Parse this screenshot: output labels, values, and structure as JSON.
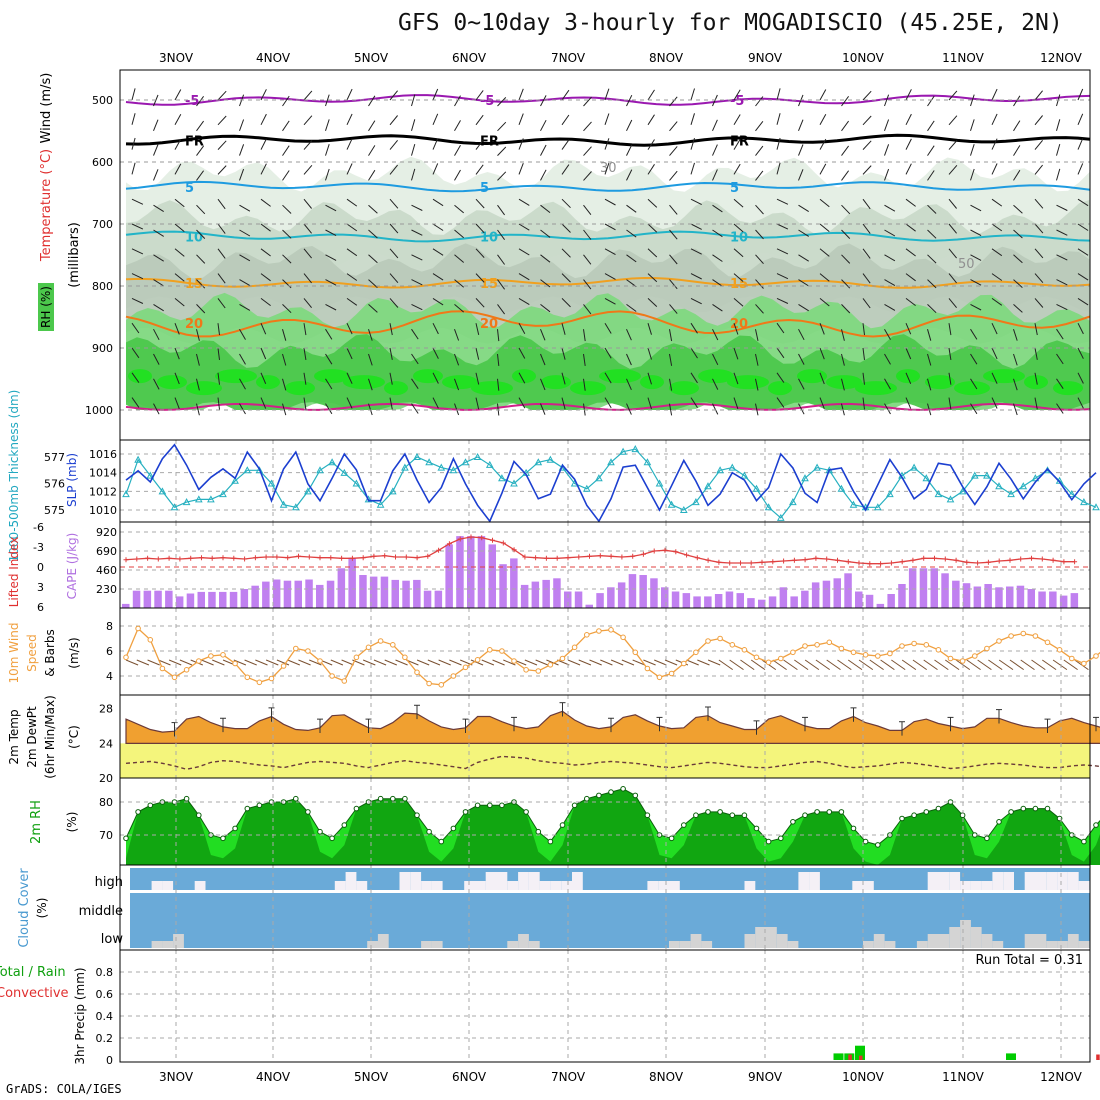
{
  "title": "GFS 0~10day 3-hourly for MOGADISCIO (45.25E, 2N)",
  "footer": "GrADS: COLA/IGES",
  "dates": [
    "3NOV",
    "4NOV",
    "5NOV",
    "6NOV",
    "7NOV",
    "8NOV",
    "9NOV",
    "10NOV",
    "11NOV",
    "12NOV"
  ],
  "chart_data": [
    {
      "id": "pressure-cross-section",
      "type": "heatmap",
      "ylabel": [
        "Wind (m/s)",
        "Temperature (°C)",
        "(millibars)",
        "RH (%)"
      ],
      "yticks": [
        500,
        600,
        700,
        800,
        900,
        1000
      ],
      "contours": [
        {
          "label": "-5",
          "approx_level_mb": 500,
          "color": "#9a18b0"
        },
        {
          "label": "FR",
          "approx_level_mb": 565,
          "color": "#000000"
        },
        {
          "label": "5",
          "approx_level_mb": 640,
          "color": "#1e9be0"
        },
        {
          "label": "10",
          "approx_level_mb": 720,
          "color": "#22b4c8"
        },
        {
          "label": "15",
          "approx_level_mb": 795,
          "color": "#f0a020"
        },
        {
          "label": "20",
          "approx_level_mb": 860,
          "color": "#f07818"
        }
      ],
      "rh_labels": [
        "30",
        "50"
      ]
    },
    {
      "id": "thickness-slp",
      "type": "line",
      "ylabel_left": "1000-500mb Thickness (dm)",
      "ylabel_right": "SLP (mb)",
      "left_ticks": [
        575,
        576,
        577
      ],
      "right_ticks": [
        1010,
        1012,
        1014,
        1016
      ],
      "series": [
        {
          "name": "SLP (mb)",
          "color": "#1c3fd0",
          "values": [
            1013.2,
            1014.2,
            1013.0,
            1015.5,
            1017.0,
            1014.8,
            1012.2,
            1013.5,
            1014.4,
            1013.4,
            1016.2,
            1014.4,
            1011.0,
            1014.4,
            1016.2,
            1012.8,
            1011.0,
            1013.4,
            1016.0,
            1014.3,
            1011.0,
            1011.0,
            1014.2,
            1016.0,
            1013.2,
            1010.8,
            1012.4,
            1015.5,
            1012.8,
            1010.5,
            1008.8,
            1011.8,
            1015.2,
            1013.8,
            1011.2,
            1011.7,
            1014.8,
            1013.3,
            1010.5,
            1008.8,
            1011.2,
            1014.6,
            1014.8,
            1012.4,
            1010.0,
            1012.6,
            1015.3,
            1013.1,
            1010.5,
            1011.7,
            1014.0,
            1013.2,
            1011.0,
            1012.4,
            1016.0,
            1014.5,
            1011.8,
            1010.8,
            1014.3,
            1014.5,
            1012.0,
            1010.0,
            1012.7,
            1015.4,
            1013.5,
            1011.2,
            1012.2,
            1015.0,
            1014.8,
            1012.5,
            1010.6,
            1012.5,
            1015.0,
            1013.3,
            1011.2,
            1013.0,
            1014.4,
            1013.0,
            1011.1,
            1012.8,
            1014.0
          ]
        },
        {
          "name": "1000-500mb Thickness (dm)",
          "color": "#26b0c0",
          "values": [
            575.6,
            576.9,
            576.3,
            575.7,
            575.1,
            575.3,
            575.4,
            575.4,
            575.6,
            576.1,
            576.5,
            576.5,
            576.0,
            575.2,
            575.1,
            575.7,
            576.5,
            576.8,
            576.4,
            576.0,
            575.4,
            575.2,
            575.7,
            576.6,
            577.0,
            576.8,
            576.6,
            576.5,
            576.8,
            577.0,
            576.7,
            576.2,
            576.0,
            576.4,
            576.8,
            576.9,
            576.6,
            576.0,
            575.8,
            576.2,
            576.8,
            577.2,
            577.3,
            576.8,
            576.0,
            575.2,
            575.0,
            575.3,
            575.9,
            576.5,
            576.6,
            576.3,
            575.8,
            575.1,
            574.7,
            575.3,
            576.2,
            576.6,
            576.5,
            575.8,
            575.2,
            575.1,
            575.1,
            575.6,
            576.3,
            576.6,
            576.2,
            575.6,
            575.4,
            575.7,
            576.3,
            576.3,
            575.9,
            575.6,
            575.9,
            576.2,
            576.5,
            576.1,
            575.6,
            575.3,
            575.1
          ]
        }
      ]
    },
    {
      "id": "lifted-index-cape",
      "type": "bar",
      "ylabel_left": "Lifted Index",
      "ylabel_right": "CAPE (J/kg)",
      "left_ticks": [
        -6,
        -3,
        0,
        3,
        6
      ],
      "right_ticks": [
        230,
        460,
        690,
        920
      ],
      "series": [
        {
          "name": "CAPE (J/kg)",
          "color": "#c080f0",
          "values": [
            50,
            210,
            210,
            210,
            210,
            140,
            175,
            195,
            195,
            195,
            195,
            230,
            270,
            320,
            345,
            330,
            330,
            345,
            280,
            330,
            480,
            610,
            400,
            380,
            380,
            340,
            330,
            340,
            210,
            210,
            770,
            870,
            870,
            870,
            770,
            530,
            600,
            280,
            320,
            340,
            360,
            200,
            200,
            40,
            180,
            250,
            310,
            410,
            400,
            360,
            250,
            200,
            180,
            140,
            140,
            170,
            200,
            180,
            120,
            100,
            140,
            250,
            140,
            210,
            310,
            330,
            360,
            420,
            200,
            160,
            50,
            170,
            290,
            480,
            480,
            480,
            420,
            330,
            300,
            260,
            290,
            250,
            260,
            270,
            230,
            200,
            200,
            150,
            180
          ]
        },
        {
          "name": "Lifted Index",
          "color": "#e04040",
          "values": [
            -1.1,
            -1.2,
            -1.3,
            -1.2,
            -1.3,
            -1.2,
            -1.3,
            -1.4,
            -1.3,
            -1.4,
            -1.3,
            -1.2,
            -1.4,
            -1.5,
            -1.5,
            -1.4,
            -1.6,
            -1.5,
            -1.4,
            -1.4,
            -1.3,
            -1.3,
            -1.4,
            -1.6,
            -1.7,
            -1.5,
            -1.5,
            -1.4,
            -1.6,
            -2.5,
            -3.5,
            -4.2,
            -4.5,
            -4.4,
            -4.0,
            -3.6,
            -2.6,
            -1.5,
            -1.4,
            -1.3,
            -1.3,
            -1.4,
            -1.5,
            -1.6,
            -1.7,
            -1.6,
            -1.5,
            -1.6,
            -1.9,
            -2.4,
            -2.5,
            -2.3,
            -1.8,
            -1.4,
            -1.0,
            -0.7,
            -0.6,
            -0.6,
            -0.6,
            -0.7,
            -0.8,
            -0.9,
            -1.0,
            -1.1,
            -1.3,
            -1.2,
            -1.0,
            -0.8,
            -0.6,
            -0.5,
            -0.5,
            -0.6,
            -0.8,
            -1.0,
            -1.3,
            -1.3,
            -1.2,
            -1.0,
            -0.7,
            -0.6,
            -0.7,
            -0.9,
            -1.0,
            -1.2,
            -1.3,
            -1.2,
            -1.0,
            -0.8,
            -0.8
          ]
        }
      ]
    },
    {
      "id": "wind-10m",
      "type": "line",
      "ylabel": [
        "10m Wind",
        "Speed",
        "& Barbs",
        "(m/s)"
      ],
      "yticks": [
        4,
        6,
        8
      ],
      "series": [
        {
          "name": "Speed",
          "color": "#f0a040",
          "values": [
            5.5,
            7.8,
            6.9,
            4.6,
            3.9,
            4.5,
            5.2,
            5.6,
            5.7,
            5.0,
            3.9,
            3.5,
            3.8,
            4.8,
            6.2,
            6.0,
            5.2,
            4.0,
            3.6,
            5.5,
            6.3,
            6.8,
            6.5,
            5.5,
            4.3,
            3.4,
            3.3,
            4.0,
            4.7,
            5.3,
            6.1,
            6.0,
            5.2,
            4.5,
            4.4,
            4.9,
            5.4,
            6.3,
            7.3,
            7.6,
            7.7,
            7.1,
            5.9,
            4.6,
            3.9,
            4.2,
            5.0,
            5.9,
            6.8,
            7.0,
            6.5,
            6.1,
            5.5,
            5.1,
            5.4,
            5.9,
            6.4,
            6.5,
            6.7,
            6.2,
            5.9,
            5.7,
            5.6,
            5.8,
            6.4,
            6.6,
            6.5,
            6.1,
            5.4,
            5.2,
            5.6,
            6.2,
            6.8,
            7.2,
            7.4,
            7.2,
            6.7,
            6.1,
            5.4,
            5.0,
            5.6,
            6.4,
            6.6,
            6.3,
            6.1,
            5.8,
            5.2,
            5.4,
            5.0
          ]
        }
      ]
    },
    {
      "id": "temperature-2m",
      "type": "area",
      "ylabel": [
        "2m Temp",
        "2m DewPt",
        "(6hr Min/Max)",
        "(°C)"
      ],
      "yticks": [
        20,
        24,
        28
      ],
      "series": [
        {
          "name": "2m Temp",
          "color": "#f0a030",
          "values": [
            26.8,
            26.2,
            25.6,
            25.3,
            25.4,
            26.8,
            27.1,
            26.4,
            25.9,
            25.7,
            25.7,
            26.6,
            27.1,
            26.2,
            25.6,
            25.5,
            25.8,
            27.2,
            27.3,
            26.5,
            25.8,
            25.7,
            26.4,
            27.5,
            27.4,
            26.6,
            25.9,
            25.6,
            25.8,
            27.1,
            27.1,
            26.5,
            26.0,
            25.7,
            25.9,
            27.2,
            27.7,
            26.7,
            26.0,
            25.7,
            25.9,
            27.0,
            27.3,
            26.6,
            26.0,
            25.7,
            25.8,
            27.0,
            27.2,
            26.4,
            26.0,
            25.6,
            25.6,
            26.8,
            27.2,
            26.6,
            26.0,
            25.7,
            25.7,
            26.6,
            27.1,
            26.4,
            26.0,
            25.5,
            25.5,
            26.5,
            26.8,
            26.3,
            26.0,
            25.7,
            25.9,
            26.9,
            26.9,
            26.4,
            26.0,
            25.8,
            25.8,
            26.6,
            26.9,
            26.4,
            26.0,
            25.6,
            25.9,
            26.7,
            26.9,
            26.4,
            26.0,
            25.8,
            27.2
          ]
        },
        {
          "name": "2m DewPt",
          "color": "#6a3a3a",
          "values": [
            21.7,
            21.8,
            21.9,
            21.7,
            21.4,
            21.0,
            21.3,
            21.8,
            22.0,
            21.9,
            21.7,
            21.5,
            21.4,
            21.2,
            21.5,
            21.8,
            21.9,
            21.8,
            21.7,
            21.4,
            21.2,
            21.5,
            21.8,
            22.0,
            21.8,
            21.7,
            21.5,
            21.3,
            21.1,
            21.8,
            22.2,
            22.5,
            22.4,
            22.3,
            22.0,
            21.8,
            21.7,
            21.5,
            21.6,
            21.8,
            21.9,
            21.8,
            21.7,
            21.5,
            21.3,
            21.2,
            21.4,
            21.6,
            21.8,
            21.7,
            21.5,
            21.3,
            21.2,
            21.2,
            21.4,
            21.6,
            21.8,
            21.9,
            21.7,
            21.4,
            21.2,
            21.3,
            21.4,
            21.6,
            21.8,
            21.7,
            21.5,
            21.3,
            21.1,
            21.2,
            21.4,
            21.6,
            21.7,
            21.6,
            21.5,
            21.3,
            21.2,
            21.2,
            21.4,
            21.5,
            21.4,
            21.2,
            21.0,
            20.9,
            21.0,
            21.1,
            21.0,
            20.8,
            20.6
          ]
        }
      ]
    },
    {
      "id": "rh-2m",
      "type": "area",
      "ylabel": [
        "2m RH",
        "(%)"
      ],
      "yticks": [
        70,
        80
      ],
      "series": [
        {
          "name": "2m RH",
          "color": "#10a010",
          "values": [
            69,
            77,
            79,
            80,
            80,
            81,
            76,
            70,
            69,
            72,
            78,
            79,
            80,
            80,
            81,
            77,
            71,
            69,
            73,
            78,
            80,
            81,
            81,
            81,
            76,
            71,
            68,
            72,
            77,
            79,
            79,
            79,
            80,
            77,
            71,
            68,
            73,
            79,
            81,
            82,
            83,
            84,
            82,
            76,
            70,
            69,
            73,
            76,
            77,
            77,
            76,
            76,
            72,
            68,
            69,
            74,
            76,
            77,
            77,
            77,
            72,
            68,
            67,
            70,
            75,
            76,
            77,
            78,
            80,
            76,
            70,
            69,
            74,
            77,
            78,
            78,
            78,
            75,
            70,
            68,
            73,
            77,
            78,
            78,
            78,
            74,
            70,
            68,
            72,
            76,
            77,
            77,
            76,
            72
          ]
        }
      ]
    },
    {
      "id": "cloud-cover",
      "type": "area",
      "ylabel": [
        "Cloud Cover",
        "(%)"
      ],
      "levels": [
        "high",
        "middle",
        "low"
      ]
    },
    {
      "id": "precip-3hr",
      "type": "bar",
      "ylabel_left": [
        "Total / Rain",
        "Convective"
      ],
      "ylabel": "3hr Precip (mm)",
      "yticks": [
        0,
        0.2,
        0.4,
        0.6,
        0.8
      ],
      "run_total": "Run Total = 0.31",
      "series": [
        {
          "name": "Total",
          "color": "#00cc00",
          "values": [
            0,
            0,
            0,
            0,
            0,
            0,
            0,
            0,
            0,
            0,
            0,
            0,
            0,
            0,
            0,
            0,
            0,
            0,
            0,
            0,
            0,
            0,
            0,
            0,
            0,
            0,
            0,
            0,
            0,
            0,
            0,
            0,
            0,
            0,
            0,
            0,
            0,
            0,
            0,
            0,
            0,
            0,
            0,
            0,
            0,
            0,
            0,
            0,
            0,
            0,
            0,
            0,
            0,
            0,
            0,
            0,
            0,
            0,
            0,
            0,
            0,
            0,
            0,
            0,
            0,
            0,
            0.06,
            0.06,
            0.13,
            0,
            0,
            0,
            0,
            0,
            0,
            0,
            0,
            0,
            0,
            0,
            0,
            0,
            0.06,
            0,
            0,
            0,
            0,
            0,
            0,
            0,
            0,
            0
          ]
        },
        {
          "name": "Convective",
          "color": "#e03030",
          "values": [
            0,
            0,
            0,
            0,
            0,
            0,
            0,
            0,
            0,
            0,
            0,
            0,
            0,
            0,
            0,
            0,
            0,
            0,
            0,
            0,
            0,
            0,
            0,
            0,
            0,
            0,
            0,
            0,
            0,
            0,
            0,
            0,
            0,
            0,
            0,
            0,
            0,
            0,
            0,
            0,
            0,
            0,
            0,
            0,
            0,
            0,
            0,
            0,
            0,
            0,
            0,
            0,
            0,
            0,
            0,
            0,
            0,
            0,
            0,
            0,
            0,
            0,
            0,
            0,
            0,
            0,
            0,
            0.05,
            0.04,
            0,
            0,
            0,
            0,
            0,
            0,
            0,
            0,
            0,
            0,
            0,
            0,
            0,
            0,
            0,
            0,
            0,
            0,
            0,
            0,
            0,
            0.05
          ]
        }
      ]
    }
  ]
}
